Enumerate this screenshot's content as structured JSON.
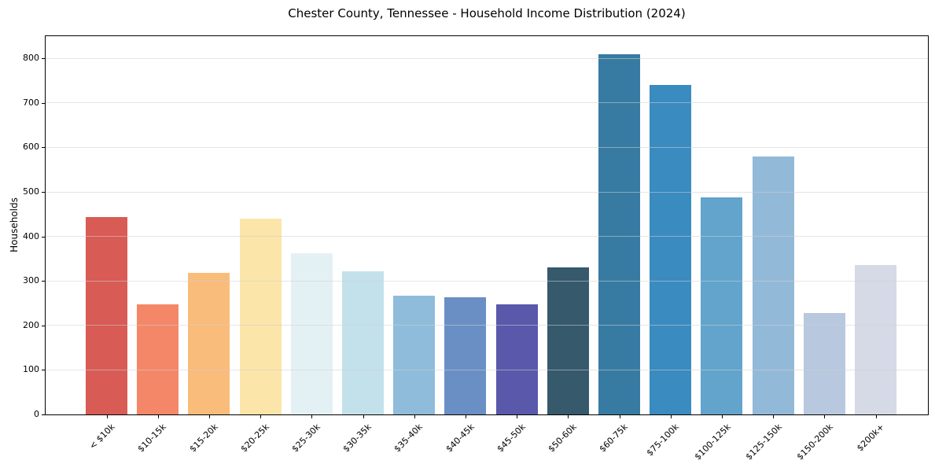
{
  "chart_data": {
    "type": "bar",
    "title": "Chester County, Tennessee - Household Income Distribution (2024)",
    "xlabel": "",
    "ylabel": "Households",
    "ylim": [
      0,
      850
    ],
    "yticks": [
      0,
      100,
      200,
      300,
      400,
      500,
      600,
      700,
      800
    ],
    "categories": [
      "< $10k",
      "$10-15k",
      "$15-20k",
      "$20-25k",
      "$25-30k",
      "$30-35k",
      "$35-40k",
      "$40-45k",
      "$45-50k",
      "$50-60k",
      "$60-75k",
      "$75-100k",
      "$100-125k",
      "$125-150k",
      "$150-200k",
      "$200k+"
    ],
    "values": [
      443,
      247,
      318,
      440,
      362,
      321,
      267,
      263,
      248,
      330,
      810,
      741,
      487,
      580,
      228,
      336
    ],
    "bar_colors": [
      "#d85b55",
      "#f48767",
      "#fabc7a",
      "#fbe5a9",
      "#e4f1f4",
      "#c3e1eb",
      "#8fbcdb",
      "#6a8fc5",
      "#5a58ab",
      "#36596c",
      "#377ba3",
      "#3a8bc0",
      "#62a4cc",
      "#93b9d9",
      "#b8c8de",
      "#d6d9e6"
    ],
    "grid": "horizontal",
    "grid_position": "above-bars",
    "legend": "none",
    "background": "#ffffff"
  }
}
